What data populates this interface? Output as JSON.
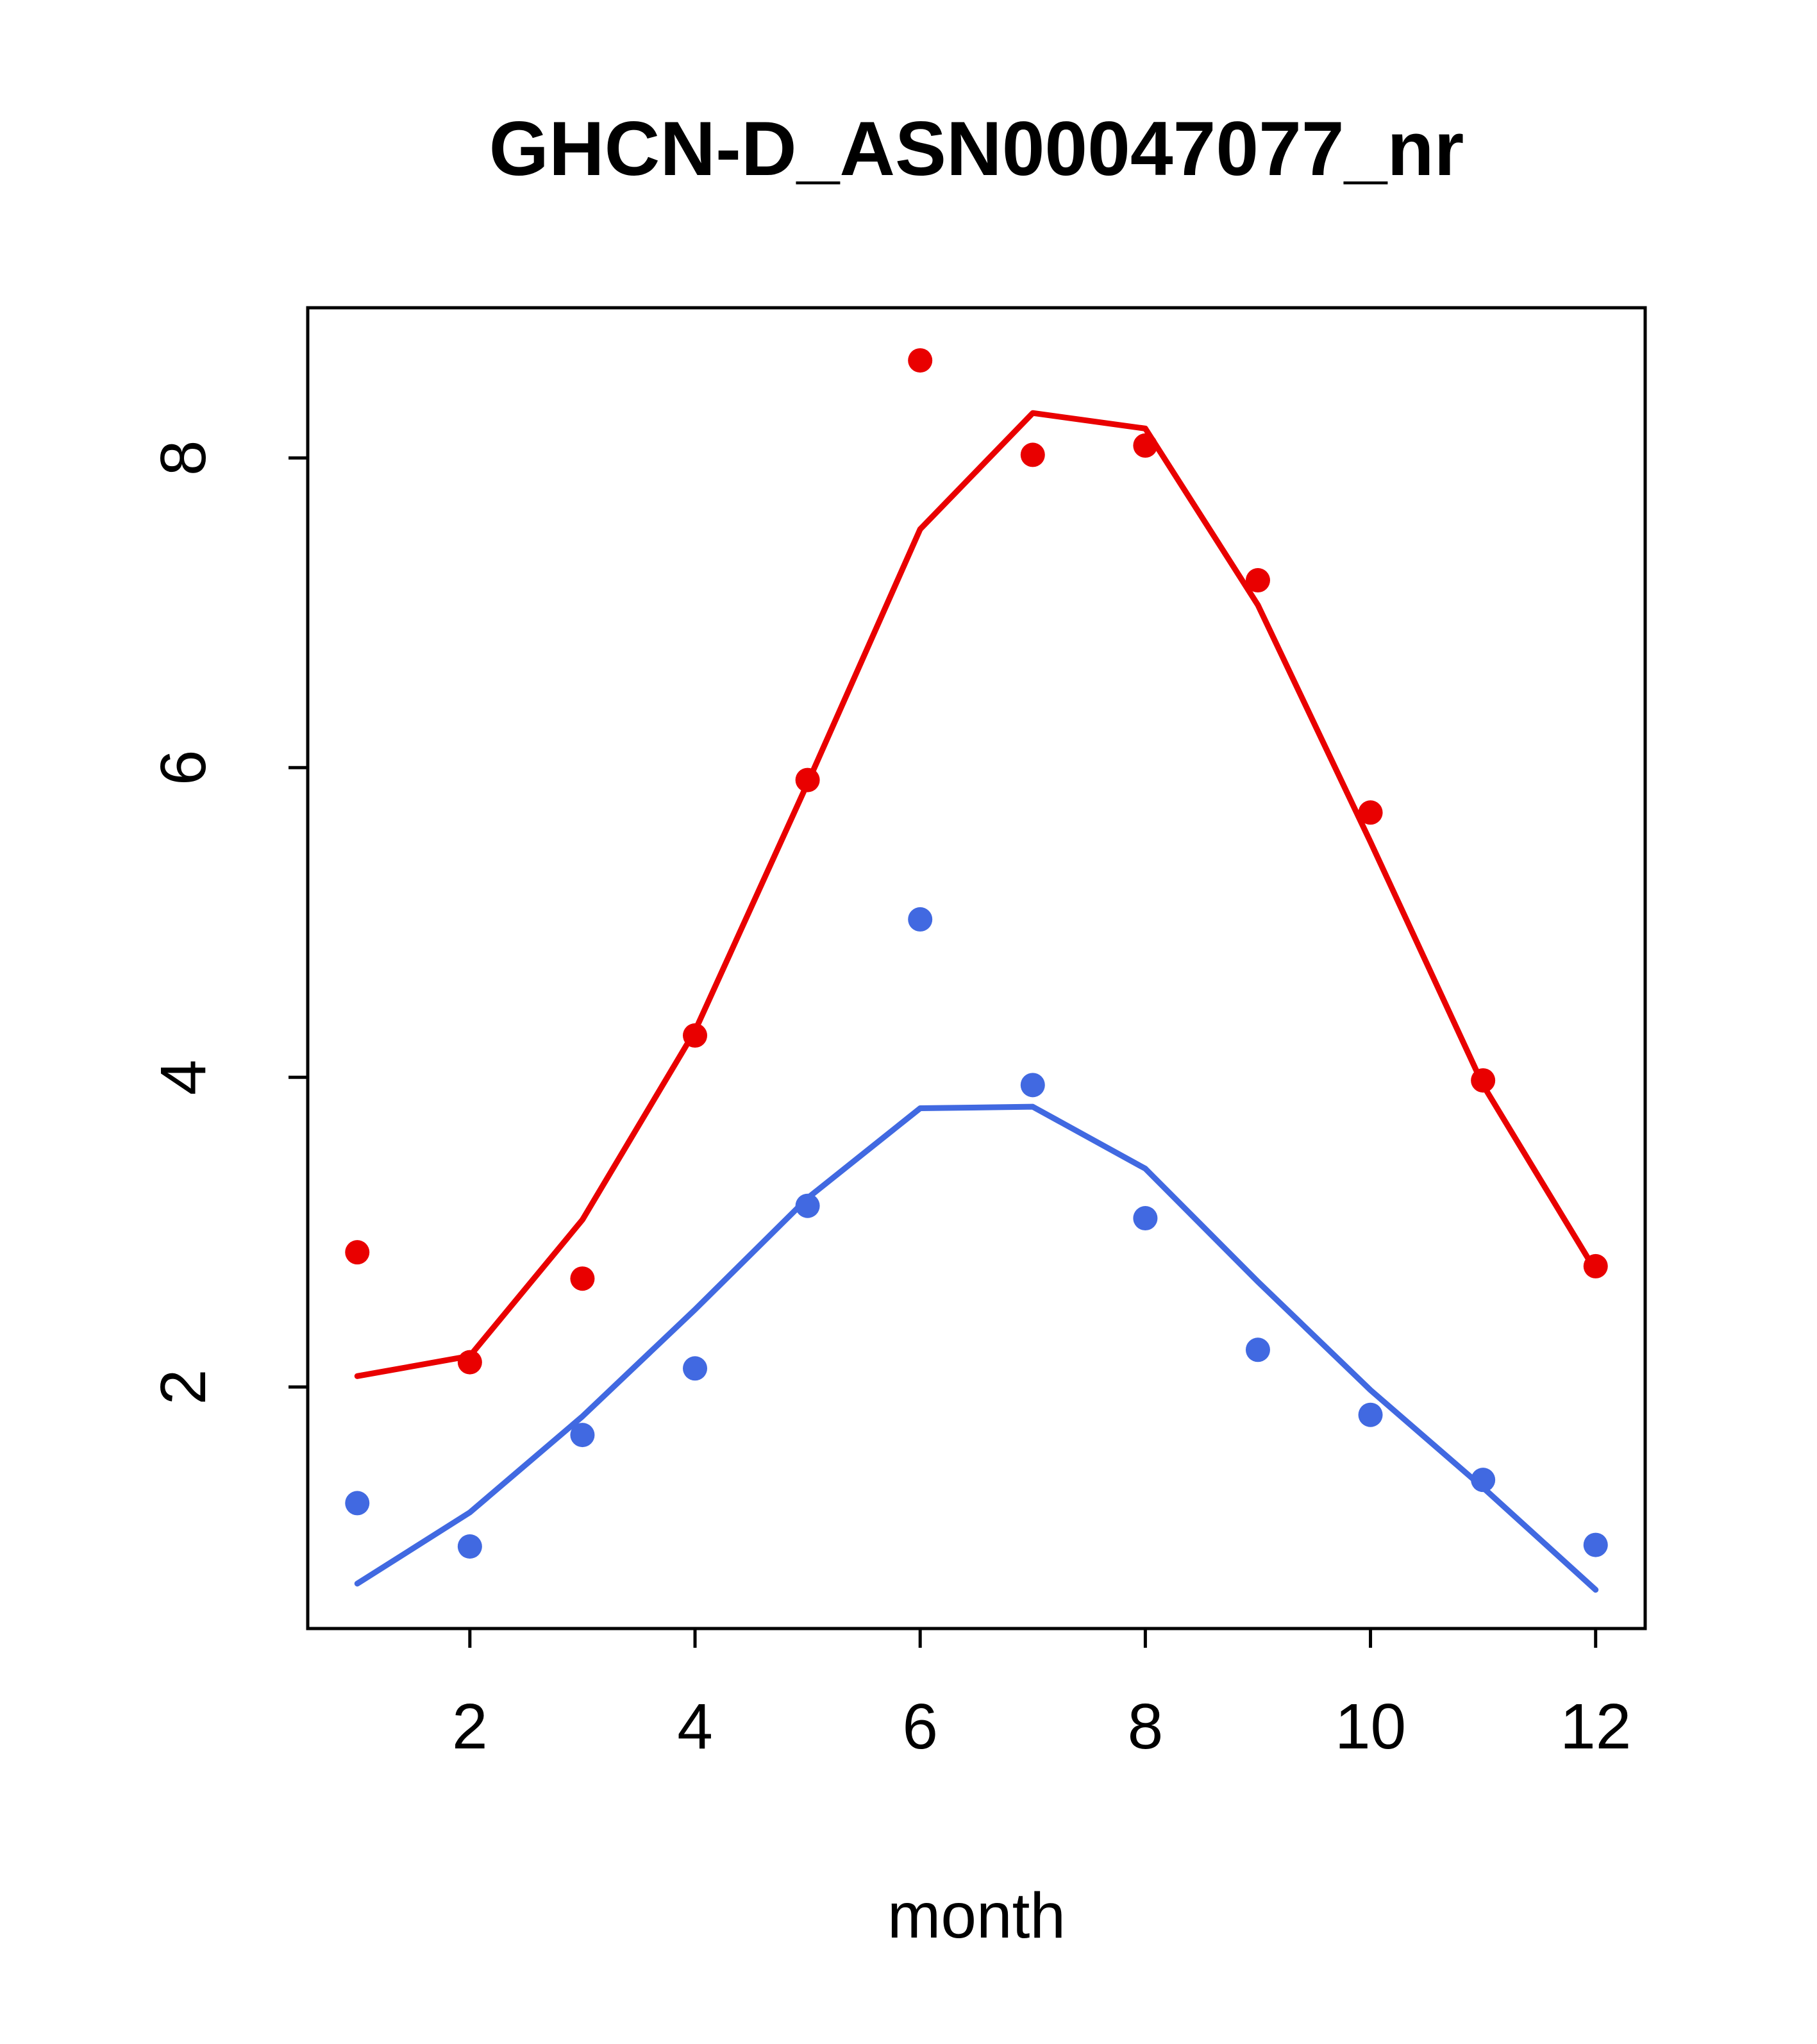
{
  "chart_data": {
    "type": "scatter",
    "title": "GHCN-D_ASN00047077_nr",
    "xlabel": "month",
    "ylabel": "",
    "x": [
      1,
      2,
      3,
      4,
      5,
      6,
      7,
      8,
      9,
      10,
      11,
      12
    ],
    "xlim": [
      0.56,
      12.44
    ],
    "ylim": [
      0.44,
      8.97
    ],
    "x_ticks": [
      2,
      4,
      6,
      8,
      10,
      12
    ],
    "y_ticks": [
      2,
      4,
      6,
      8
    ],
    "grid": false,
    "legend": "none",
    "colors": {
      "red": "#e90000",
      "blue": "#4169e1",
      "axis": "#000000",
      "background": "#ffffff"
    },
    "series": [
      {
        "name": "red-observed-points",
        "type": "points",
        "color": "#e90000",
        "values": [
          2.87,
          2.16,
          2.7,
          4.27,
          5.92,
          8.63,
          8.02,
          8.08,
          7.21,
          5.71,
          3.98,
          2.78
        ]
      },
      {
        "name": "red-fitted-line",
        "type": "line",
        "color": "#e90000",
        "values": [
          2.07,
          2.2,
          3.08,
          4.3,
          5.9,
          7.54,
          8.29,
          8.19,
          7.05,
          5.52,
          3.95,
          2.75
        ]
      },
      {
        "name": "blue-observed-points",
        "type": "points",
        "color": "#4169e1",
        "values": [
          1.25,
          0.97,
          1.69,
          2.12,
          3.17,
          5.02,
          3.95,
          3.09,
          2.24,
          1.82,
          1.4,
          0.98
        ]
      },
      {
        "name": "blue-fitted-line",
        "type": "line",
        "color": "#4169e1",
        "values": [
          0.73,
          1.19,
          1.81,
          2.5,
          3.22,
          3.8,
          3.81,
          3.41,
          2.68,
          1.98,
          1.35,
          0.69
        ]
      }
    ]
  }
}
